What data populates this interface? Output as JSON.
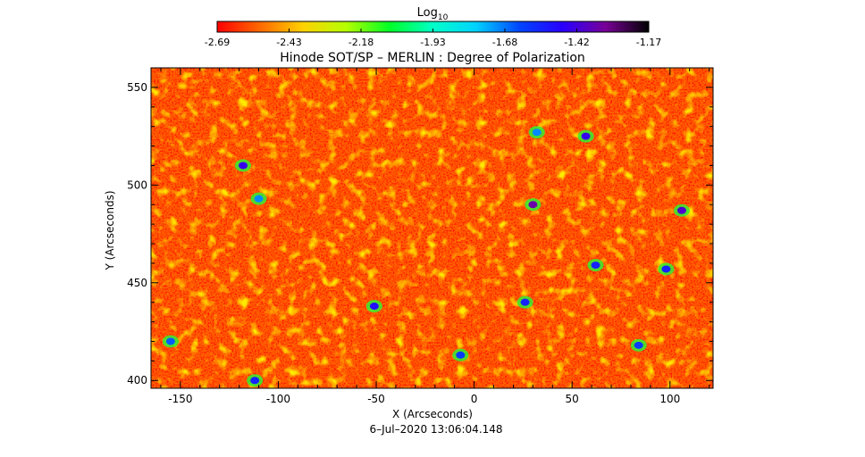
{
  "chart_data": {
    "type": "heatmap",
    "title": "Hinode SOT/SP – MERLIN : Degree of Polarization",
    "xlabel": "X (Arcseconds)",
    "ylabel": "Y (Arcseconds)",
    "xlim": [
      -165,
      122
    ],
    "ylim": [
      396,
      560
    ],
    "x_ticks": [
      -150,
      -100,
      -50,
      0,
      50,
      100
    ],
    "y_ticks": [
      400,
      450,
      500,
      550
    ],
    "colorbar": {
      "label": "Log",
      "label_subscript": "10",
      "range": [
        -2.69,
        -1.17
      ],
      "ticks": [
        "-2.69",
        "-2.43",
        "-2.18",
        "-1.93",
        "-1.68",
        "-1.42",
        "-1.17"
      ],
      "colors": [
        "#ff0000",
        "#ff6a00",
        "#ffd200",
        "#b4ff00",
        "#00ff28",
        "#00ffc8",
        "#00d2ff",
        "#0046ff",
        "#2800ff",
        "#780096",
        "#000000"
      ]
    },
    "features": [
      {
        "x": 30,
        "y": 490,
        "value": -1.35
      },
      {
        "x": 106,
        "y": 487,
        "value": -1.4
      },
      {
        "x": 57,
        "y": 525,
        "value": -1.45
      },
      {
        "x": -118,
        "y": 510,
        "value": -1.45
      },
      {
        "x": -51,
        "y": 438,
        "value": -1.5
      },
      {
        "x": 26,
        "y": 440,
        "value": -1.55
      },
      {
        "x": 62,
        "y": 459,
        "value": -1.55
      },
      {
        "x": 98,
        "y": 457,
        "value": -1.55
      },
      {
        "x": -112,
        "y": 400,
        "value": -1.55
      },
      {
        "x": -7,
        "y": 413,
        "value": -1.6
      },
      {
        "x": 84,
        "y": 418,
        "value": -1.6
      },
      {
        "x": -155,
        "y": 420,
        "value": -1.65
      },
      {
        "x": -110,
        "y": 493,
        "value": -1.7
      },
      {
        "x": 32,
        "y": 527,
        "value": -1.7
      }
    ],
    "background_value": -2.55
  },
  "footer": {
    "timestamp": "6–Jul–2020 13:06:04.148"
  }
}
